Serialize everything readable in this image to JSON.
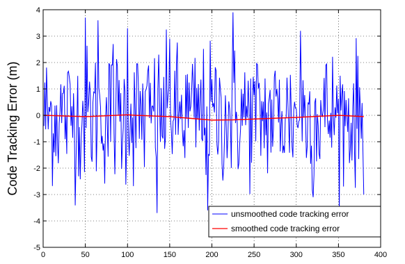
{
  "chart_data": {
    "type": "line",
    "title": "",
    "xlabel": "",
    "ylabel": "Code Tracking Error (m)",
    "xlim": [
      0,
      400
    ],
    "ylim": [
      -5,
      4
    ],
    "xticks": [
      0,
      50,
      100,
      150,
      200,
      250,
      300,
      350,
      400
    ],
    "yticks": [
      -5,
      -4,
      -3,
      -2,
      -1,
      0,
      1,
      2,
      3,
      4
    ],
    "grid": true,
    "legend_position": "bottom-right",
    "series": [
      {
        "name": "unsmoothed code tracking error",
        "color": "#0000ff",
        "x_start": 1,
        "x_end": 380,
        "amplitude_range": [
          -3.7,
          4.0
        ],
        "noise_std": 1.3,
        "description_values": "noisy signal around 0 with peaks near 3.7 at x≈50, 3.6 at x≈65, 3.9 at x≈225 and troughs near -3.7 at x≈135, -3.6 at x≈195"
      },
      {
        "name": "smoothed code tracking error",
        "color": "#ff0000",
        "x": [
          1,
          50,
          100,
          110,
          150,
          200,
          225,
          250,
          300,
          350,
          380
        ],
        "y": [
          0.0,
          -0.05,
          0.02,
          0.0,
          -0.05,
          -0.18,
          -0.17,
          -0.14,
          -0.08,
          0.0,
          -0.05
        ]
      }
    ]
  }
}
